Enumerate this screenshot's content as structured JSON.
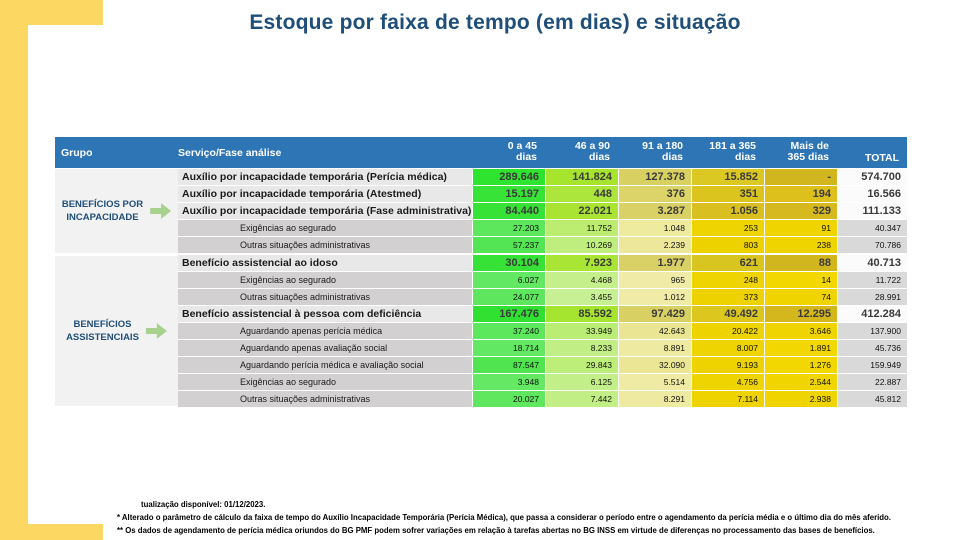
{
  "page": {
    "title": "Estoque por faixa de tempo (em dias) e situação",
    "colors": {
      "accent_yellow": "#FCD863",
      "title_blue": "#1F4E79",
      "header_blue": "#2E75B6",
      "arrow_green": "#A9D18E",
      "group_text_blue": "#1F4E79"
    }
  },
  "table": {
    "header": {
      "group": "Grupo",
      "service": "Serviço/Fase análise",
      "columns": [
        {
          "line1": "0 a 45",
          "line2": "dias"
        },
        {
          "line1": "46 a 90",
          "line2": "dias"
        },
        {
          "line1": "91 a 180",
          "line2": "dias"
        },
        {
          "line1": "181 a 365",
          "line2": "dias"
        },
        {
          "line1": "Mais de",
          "line2": "365  dias"
        }
      ],
      "total": "TOTAL"
    },
    "groups": [
      {
        "lines": [
          "BENEFÍCIOS POR",
          "INCAPACIDADE"
        ],
        "rows": 5
      },
      {
        "lines": [
          "BENEFÍCIOS",
          "ASSISTENCIAIS"
        ],
        "rows": 9
      }
    ],
    "rows": [
      {
        "style": "bold",
        "label": "Auxílio por incapacidade temporária (Perícia médica)",
        "values": [
          "289.646",
          "141.824",
          "127.378",
          "15.852",
          "-"
        ],
        "total": "574.700",
        "colors": [
          "#2ee42e",
          "#a6e42e",
          "#d8d060",
          "#dbc822",
          "#d2b61e"
        ]
      },
      {
        "style": "bold",
        "label": "Auxílio por incapacidade temporária (Atestmed)",
        "values": [
          "15.197",
          "448",
          "376",
          "351",
          "194"
        ],
        "total": "16.566",
        "colors": [
          "#38e338",
          "#ace63c",
          "#dcd468",
          "#dcc41e",
          "#dec01c"
        ]
      },
      {
        "style": "bold",
        "label": "Auxílio por incapacidade temporária (Fase administrativa)",
        "values": [
          "84.440",
          "22.021",
          "3.287",
          "1.056",
          "329"
        ],
        "total": "111.133",
        "colors": [
          "#35e235",
          "#a8e431",
          "#d9d165",
          "#d9c020",
          "#d6b91e"
        ]
      },
      {
        "style": "sub",
        "label": "Exigências ao segurado",
        "values": [
          "27.203",
          "11.752",
          "1.048",
          "253",
          "91"
        ],
        "total": "40.347",
        "colors": [
          "#5de75d",
          "#bcec70",
          "#efeb9e",
          "#eed400",
          "#f0d400"
        ]
      },
      {
        "style": "sub",
        "label": "Outras situações administrativas",
        "values": [
          "57.237",
          "10.269",
          "2.239",
          "803",
          "238"
        ],
        "total": "70.786",
        "colors": [
          "#53e553",
          "#c0ee7e",
          "#ece79a",
          "#eed200",
          "#f0d400"
        ]
      },
      {
        "style": "bold",
        "label": "Benefício assistencial ao idoso",
        "values": [
          "30.104",
          "7.923",
          "1.977",
          "621",
          "88"
        ],
        "total": "40.713",
        "colors": [
          "#36e236",
          "#a9e534",
          "#d9d166",
          "#d9c51f",
          "#d2b61d"
        ]
      },
      {
        "style": "sub",
        "label": "Exigências ao segurado",
        "values": [
          "6.027",
          "4.468",
          "965",
          "248",
          "14"
        ],
        "total": "11.722",
        "colors": [
          "#62e862",
          "#c4ef8b",
          "#f0eba6",
          "#eed400",
          "#f2d800"
        ]
      },
      {
        "style": "sub",
        "label": "Outras situações administrativas",
        "values": [
          "24.077",
          "3.455",
          "1.012",
          "373",
          "74"
        ],
        "total": "28.991",
        "colors": [
          "#5ee75e",
          "#c7f094",
          "#f0eba6",
          "#eed200",
          "#f0d400"
        ]
      },
      {
        "style": "bold",
        "label": "Benefício assistencial à pessoa com deficiência",
        "values": [
          "167.476",
          "85.592",
          "97.429",
          "49.492",
          "12.295"
        ],
        "total": "412.284",
        "colors": [
          "#31e131",
          "#a5e42f",
          "#d8d062",
          "#dcc71f",
          "#d4b71d"
        ]
      },
      {
        "style": "sub",
        "label": "Aguardando apenas perícia médica",
        "values": [
          "37.240",
          "33.949",
          "42.643",
          "20.422",
          "3.646"
        ],
        "total": "137.900",
        "colors": [
          "#5ce75c",
          "#baed74",
          "#eae593",
          "#edd300",
          "#f0d400"
        ]
      },
      {
        "style": "sub",
        "label": "Aguardando apenas avaliação social",
        "values": [
          "18.714",
          "8.233",
          "8.891",
          "8.007",
          "1.891"
        ],
        "total": "45.736",
        "colors": [
          "#63e863",
          "#c1ee85",
          "#eeeaa2",
          "#eed400",
          "#f2d700"
        ]
      },
      {
        "style": "sub",
        "label": "Aguardando perícia médica e avaliação social",
        "values": [
          "87.547",
          "29.843",
          "32.090",
          "9.193",
          "1.276"
        ],
        "total": "159.949",
        "colors": [
          "#50e550",
          "#bdee79",
          "#ebe695",
          "#eed300",
          "#f2d700"
        ]
      },
      {
        "style": "sub",
        "label": "Exigências ao segurado",
        "values": [
          "3.948",
          "6.125",
          "5.514",
          "4.756",
          "2.544"
        ],
        "total": "22.887",
        "colors": [
          "#65e965",
          "#c3ef88",
          "#efeaa4",
          "#eed400",
          "#f0d500"
        ]
      },
      {
        "style": "sub",
        "label": "Outras situações administrativas",
        "values": [
          "20.027",
          "7.442",
          "8.291",
          "7.114",
          "2.938"
        ],
        "total": "45.812",
        "colors": [
          "#60e760",
          "#c2ee86",
          "#eeeaa2",
          "#eed300",
          "#f0d400"
        ]
      }
    ]
  },
  "footnotes": [
    "tualização disponível:  01/12/2023.",
    "* Alterado o parâmetro de cálculo da faixa de tempo do Auxílio Incapacidade Temporária (Perícia Médica), que passa a considerar o período entre o agendamento da perícia média e o último dia do mês aferido.",
    "** Os dados de agendamento de perícia médica oriundos do BG PMF podem sofrer variações em relação à tarefas abertas no BG INSS em virtude de diferenças no processamento das bases de benefícios."
  ]
}
